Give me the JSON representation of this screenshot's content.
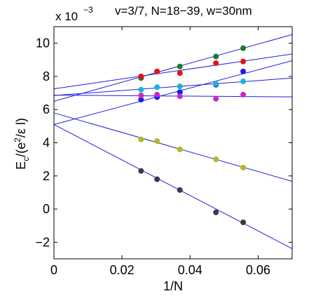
{
  "chart_data": {
    "type": "scatter",
    "title": "v=3/7, N=18−39, w=30nm",
    "xlabel": "1/N",
    "ylabel": "E",
    "ylabel_sub": "c",
    "ylabel_tail": "/(e",
    "ylabel_sup": "2",
    "ylabel_end": "/ε l)",
    "y_scale_prefix": "x 10",
    "y_scale_exponent": "−3",
    "xlim": [
      0,
      0.07
    ],
    "ylim": [
      -3,
      11
    ],
    "x_ticks": [
      0,
      0.02,
      0.04,
      0.06
    ],
    "x_tick_labels": [
      "0",
      "0.02",
      "0.04",
      "0.06"
    ],
    "y_ticks": [
      -2,
      0,
      2,
      4,
      6,
      8,
      10
    ],
    "y_tick_labels": [
      "−2",
      "0",
      "2",
      "4",
      "6",
      "8",
      "10"
    ],
    "grid": false,
    "x": [
      0.0256,
      0.0303,
      0.037,
      0.0476,
      0.0556
    ],
    "series": [
      {
        "color": "#1a7a2a",
        "values": [
          7.9,
          8.3,
          8.6,
          9.2,
          9.7
        ],
        "fit": {
          "intercept": 6.5,
          "slope": 57.5
        }
      },
      {
        "color": "#e0121a",
        "values": [
          8.0,
          8.3,
          8.2,
          8.8,
          8.9
        ],
        "fit": {
          "intercept": 7.25,
          "slope": 30.0
        }
      },
      {
        "color": "#1a1ae6",
        "values": [
          6.6,
          6.75,
          7.05,
          7.5,
          8.3
        ],
        "fit": {
          "intercept": 5.1,
          "slope": 55.0
        }
      },
      {
        "color": "#18b4d6",
        "values": [
          7.2,
          7.35,
          7.4,
          7.55,
          7.7
        ],
        "fit": {
          "intercept": 6.85,
          "slope": 15.0
        }
      },
      {
        "color": "#c62ac6",
        "values": [
          6.85,
          6.9,
          6.8,
          6.65,
          6.9
        ],
        "fit": {
          "intercept": 6.87,
          "slope": -1.5
        }
      },
      {
        "color": "#b5b520",
        "values": [
          4.2,
          4.1,
          3.6,
          3.0,
          2.5
        ],
        "fit": {
          "intercept": 5.8,
          "slope": -59.0
        }
      },
      {
        "color": "#3a3a4a",
        "values": [
          2.3,
          1.8,
          1.15,
          -0.2,
          -0.8
        ],
        "fit": {
          "intercept": 5.1,
          "slope": -107.0
        }
      }
    ]
  }
}
